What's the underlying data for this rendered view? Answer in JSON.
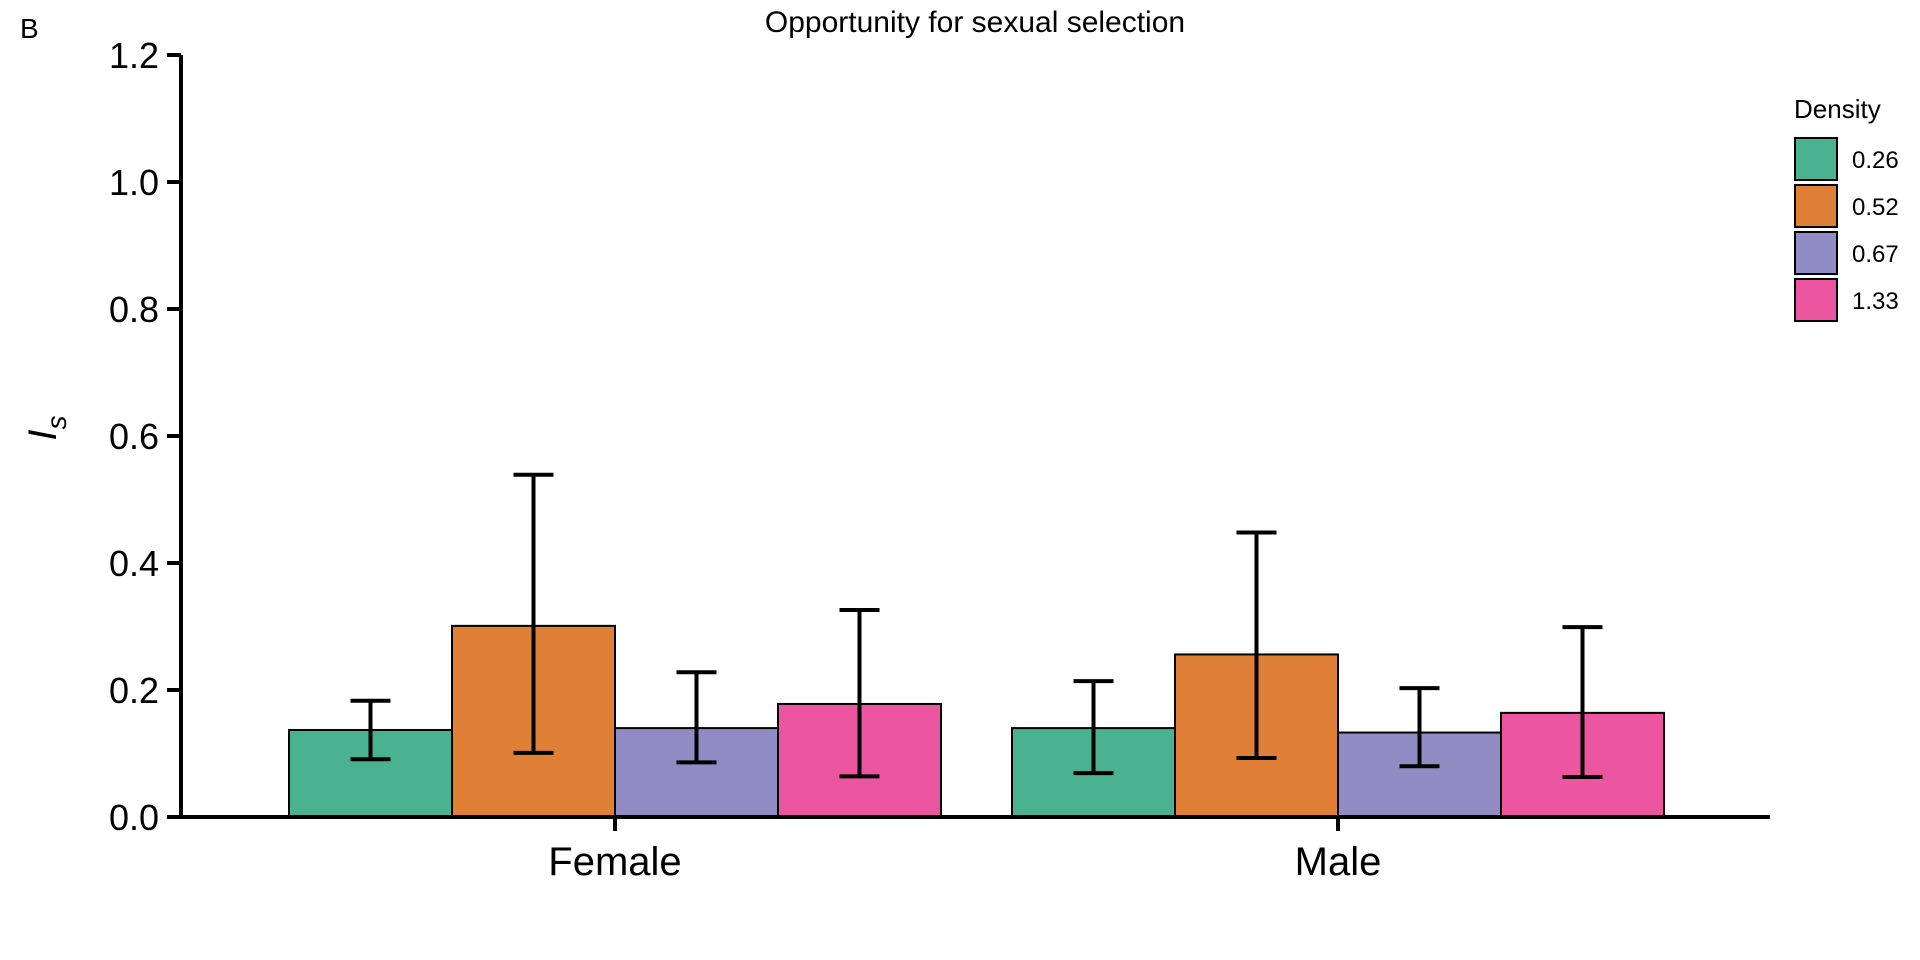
{
  "panel_label": "B",
  "chart_data": {
    "type": "bar",
    "title": "Opportunity for sexual selection",
    "xlabel": "",
    "ylabel": "I",
    "ylabel_subscript": "s",
    "ylim": [
      0,
      1.2
    ],
    "yticks": [
      0.0,
      0.2,
      0.4,
      0.6,
      0.8,
      1.0,
      1.2
    ],
    "ytick_labels": [
      "0.0",
      "0.2",
      "0.4",
      "0.6",
      "0.8",
      "1.0",
      "1.2"
    ],
    "categories": [
      "Female",
      "Male"
    ],
    "grid": false,
    "legend": {
      "title": "Density",
      "placement": "right"
    },
    "series": [
      {
        "name": "0.26",
        "color": "#4ab291",
        "values": [
          0.137,
          0.14
        ],
        "err_low": [
          0.091,
          0.069
        ],
        "err_high": [
          0.183,
          0.214
        ]
      },
      {
        "name": "0.52",
        "color": "#e07f36",
        "values": [
          0.301,
          0.256
        ],
        "err_low": [
          0.101,
          0.093
        ],
        "err_high": [
          0.539,
          0.448
        ]
      },
      {
        "name": "0.67",
        "color": "#918cc3",
        "values": [
          0.14,
          0.133
        ],
        "err_low": [
          0.086,
          0.08
        ],
        "err_high": [
          0.228,
          0.203
        ]
      },
      {
        "name": "1.33",
        "color": "#ec56a0",
        "values": [
          0.178,
          0.164
        ],
        "err_low": [
          0.064,
          0.063
        ],
        "err_high": [
          0.326,
          0.299
        ]
      }
    ]
  }
}
